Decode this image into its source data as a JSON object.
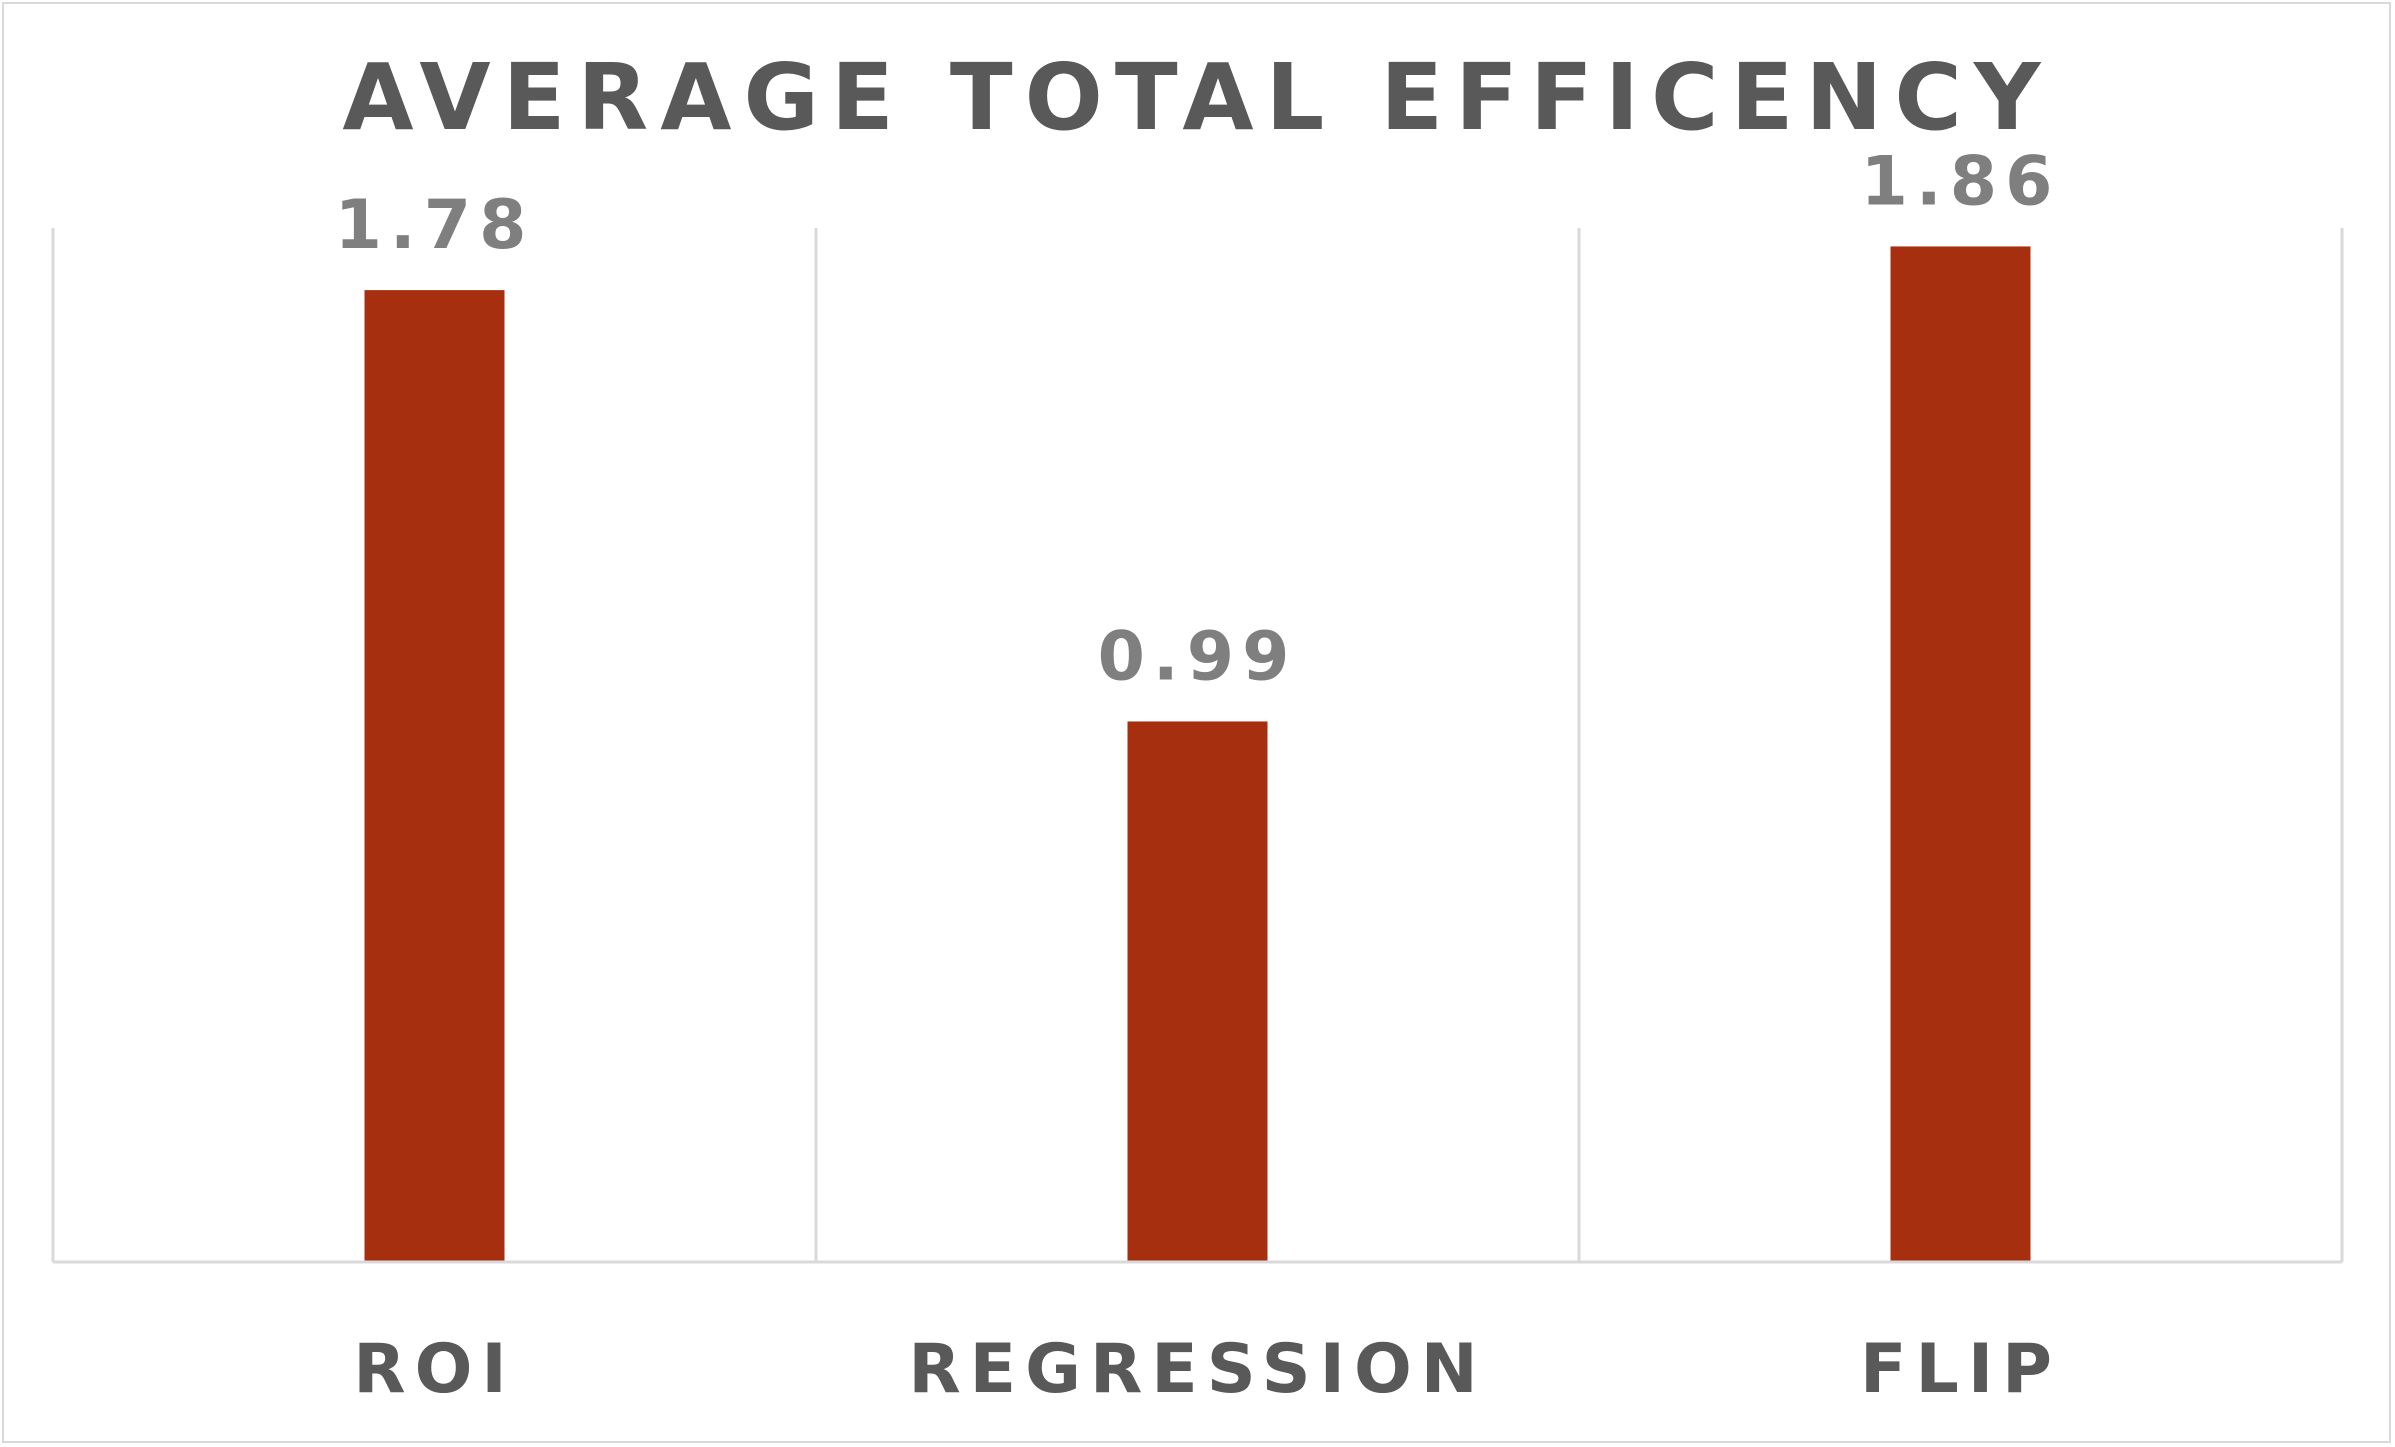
{
  "chart_data": {
    "type": "bar",
    "title": "AVERAGE TOTAL EFFICENCY",
    "categories": [
      "ROI",
      "REGRESSION",
      "FLIP"
    ],
    "values": [
      1.78,
      0.99,
      1.86
    ],
    "data_labels": [
      "1.78",
      "0.99",
      "1.86"
    ],
    "xlabel": "",
    "ylabel": "",
    "ylim": [
      0,
      2
    ],
    "grid": "vertical category separators",
    "legend": "none",
    "colors": {
      "bar": "#a52f0f",
      "title": "#595959",
      "category_label": "#595959",
      "data_label": "#7f7f7f",
      "axis": "#d9d9d9"
    }
  }
}
